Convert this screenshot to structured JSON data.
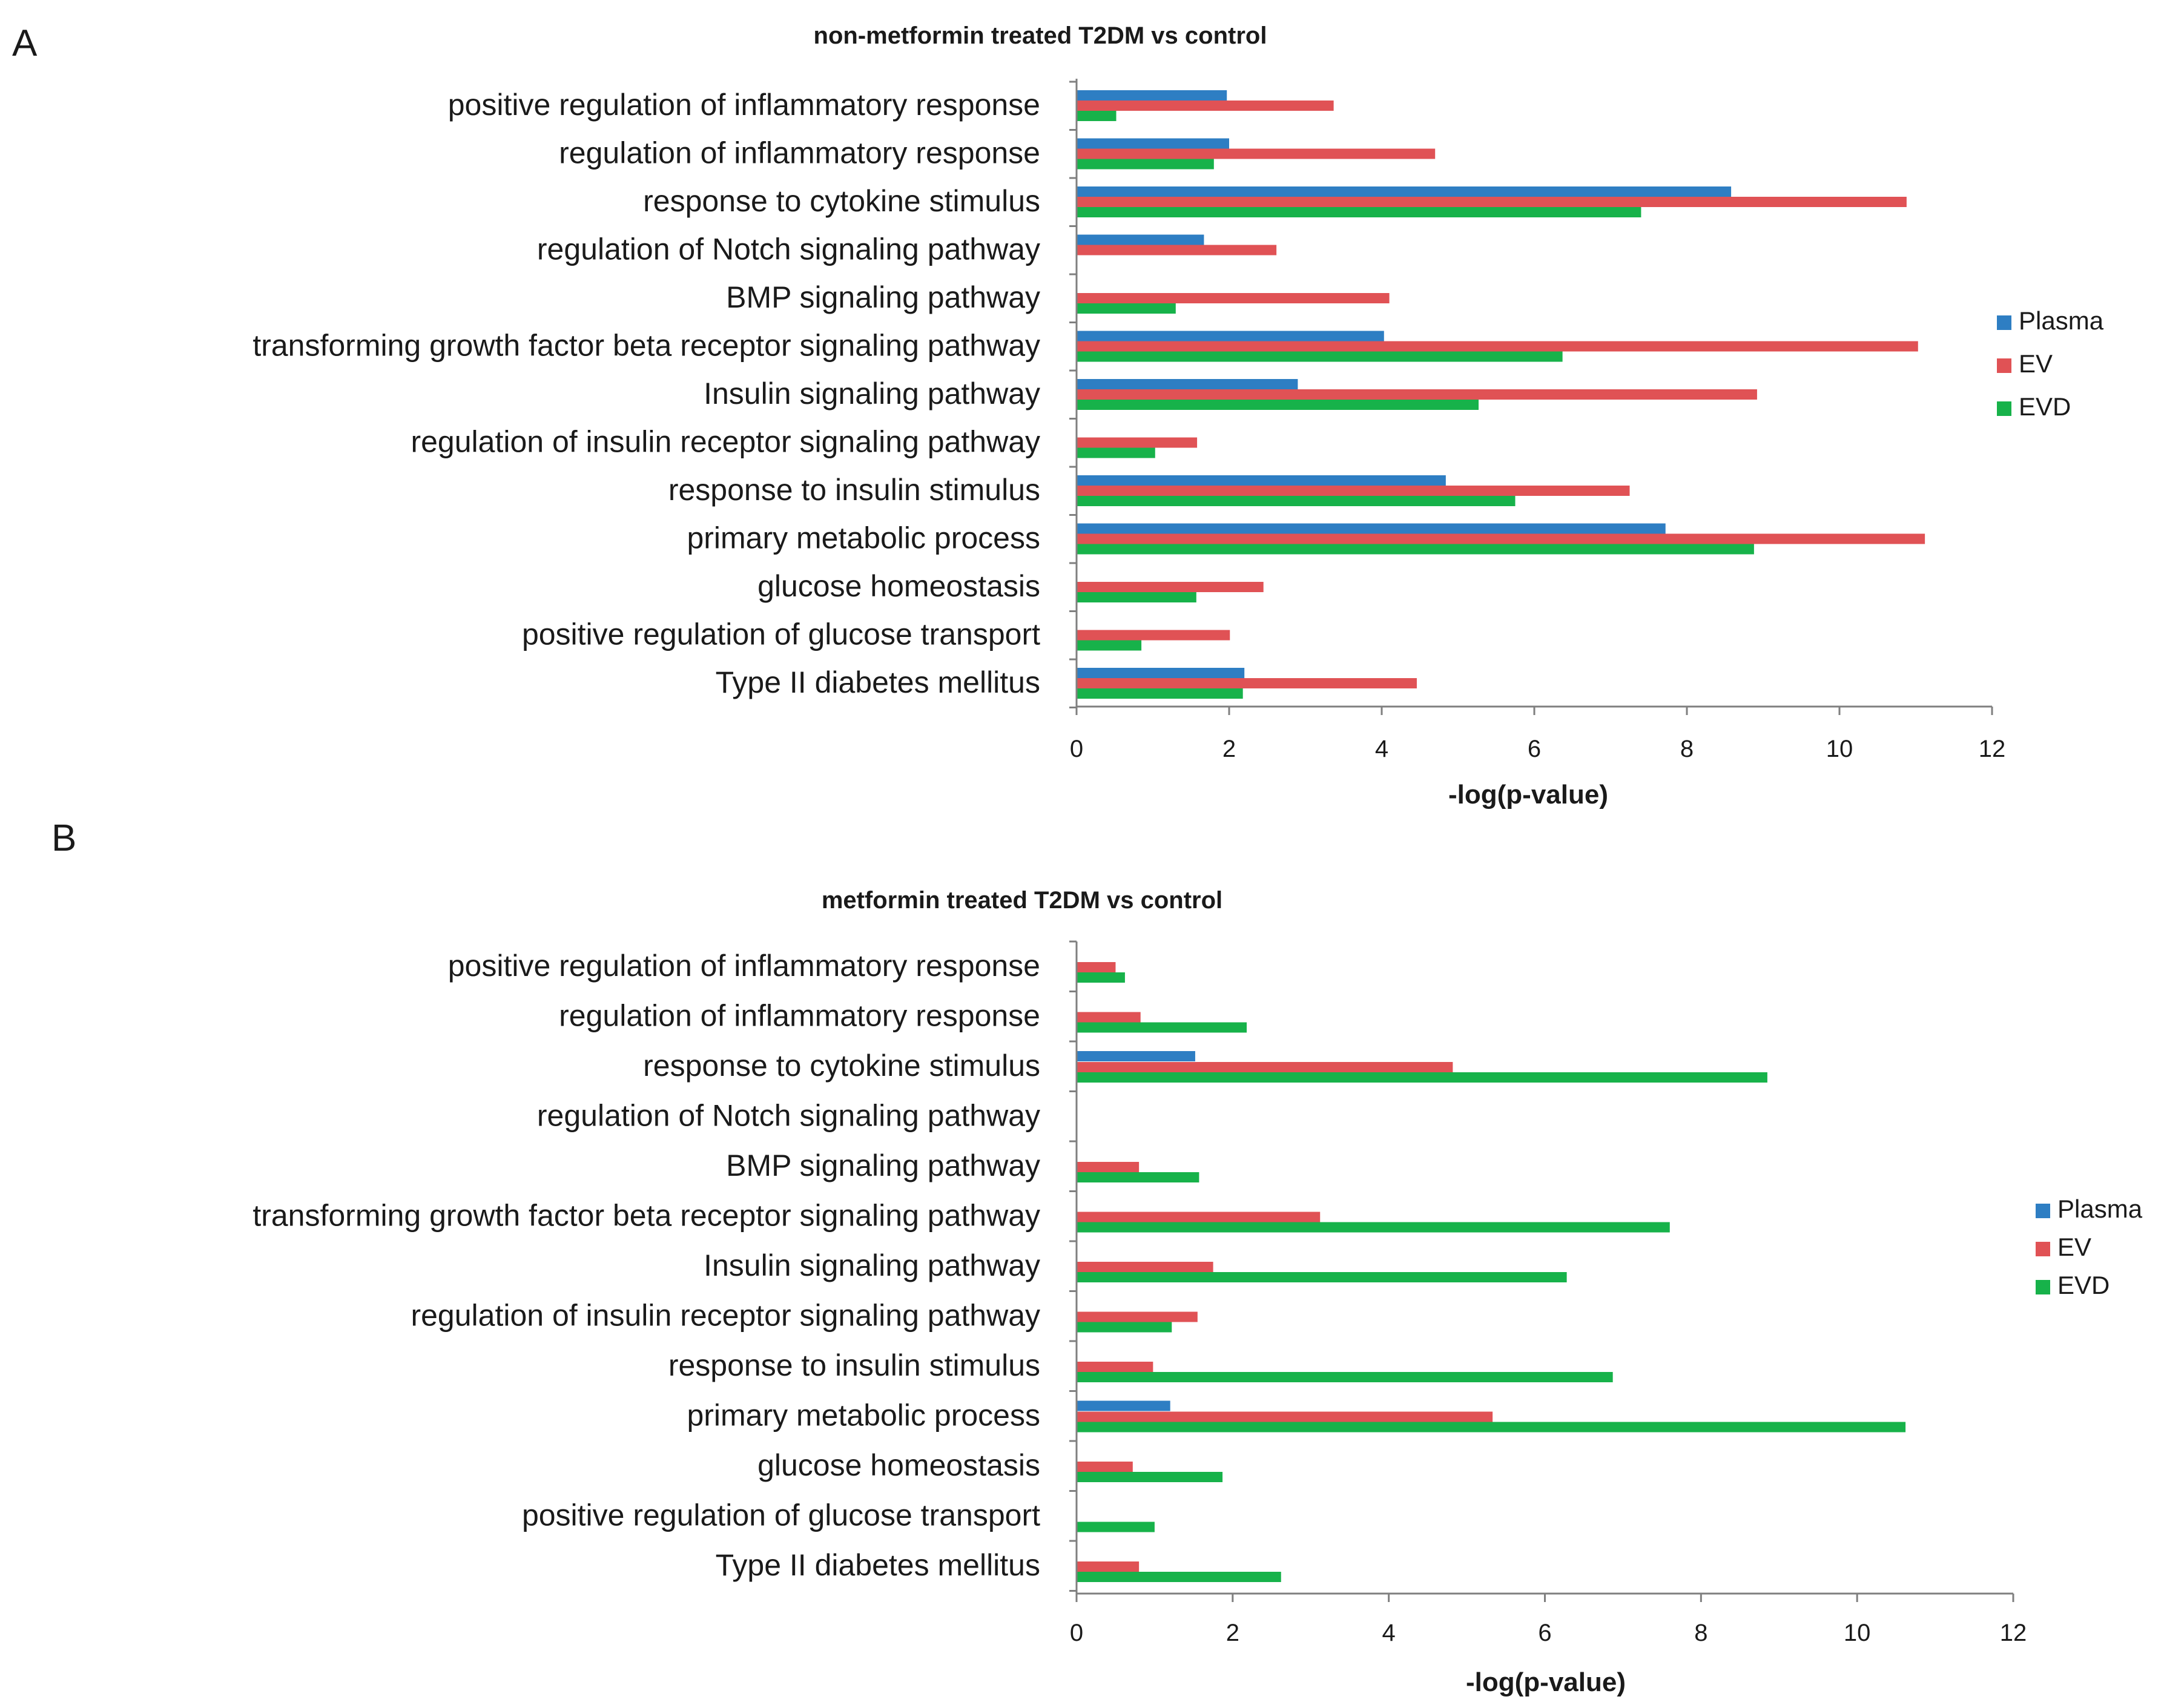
{
  "panel_labels": [
    "A",
    "B"
  ],
  "colors": {
    "Plasma": "#2e7ec3",
    "EV": "#e05255",
    "EVD": "#17b24a",
    "axis": "#7f7f7f"
  },
  "chart_data": [
    {
      "type": "bar",
      "orientation": "horizontal",
      "panel": "A",
      "title": "non-metformin treated T2DM vs control",
      "xlabel": "-log(p-value)",
      "ylabel": "",
      "xlim": [
        0,
        12
      ],
      "xticks": [
        0,
        2,
        4,
        6,
        8,
        10,
        12
      ],
      "legend": [
        "Plasma",
        "EV",
        "EVD"
      ],
      "legend_position": "right",
      "categories": [
        "positive regulation of inflammatory response",
        "regulation of inflammatory response",
        "response to cytokine stimulus",
        "regulation of Notch signaling pathway",
        "BMP signaling pathway",
        "transforming growth factor beta receptor signaling pathway",
        "Insulin signaling pathway",
        "regulation of insulin receptor signaling pathway",
        "response to insulin stimulus",
        "primary metabolic process",
        "glucose homeostasis",
        "positive regulation of glucose transport",
        "Type II diabetes mellitus"
      ],
      "series": [
        {
          "name": "Plasma",
          "values": [
            1.97,
            2.0,
            8.58,
            1.67,
            0,
            4.03,
            2.9,
            0,
            4.84,
            7.72,
            0,
            0,
            2.2
          ]
        },
        {
          "name": "EV",
          "values": [
            3.37,
            4.7,
            10.88,
            2.62,
            4.1,
            11.03,
            8.92,
            1.58,
            7.25,
            11.12,
            2.45,
            2.01,
            4.46
          ]
        },
        {
          "name": "EVD",
          "values": [
            0.52,
            1.8,
            7.4,
            0,
            1.3,
            6.37,
            5.27,
            1.03,
            5.75,
            8.88,
            1.57,
            0.85,
            2.18
          ]
        }
      ]
    },
    {
      "type": "bar",
      "orientation": "horizontal",
      "panel": "B",
      "title": "metformin treated  T2DM vs control",
      "xlabel": "-log(p-value)",
      "ylabel": "",
      "xlim": [
        0,
        12
      ],
      "xticks": [
        0,
        2,
        4,
        6,
        8,
        10,
        12
      ],
      "legend": [
        "Plasma",
        "EV",
        "EVD"
      ],
      "legend_position": "right",
      "categories": [
        "positive regulation of inflammatory response",
        "regulation of inflammatory response",
        "response to cytokine stimulus",
        "regulation of Notch signaling pathway",
        "BMP signaling pathway",
        "transforming growth factor beta receptor signaling pathway",
        "Insulin signaling pathway",
        "regulation of insulin receptor signaling pathway",
        "response to insulin stimulus",
        "primary metabolic process",
        "glucose homeostasis",
        "positive regulation of glucose transport",
        "Type II diabetes mellitus"
      ],
      "series": [
        {
          "name": "Plasma",
          "values": [
            0,
            0,
            1.52,
            0,
            0,
            0,
            0,
            0,
            0,
            1.2,
            0,
            0,
            0
          ]
        },
        {
          "name": "EV",
          "values": [
            0.5,
            0.82,
            4.82,
            0,
            0.8,
            3.12,
            1.75,
            1.55,
            0.98,
            5.33,
            0.72,
            0,
            0.8
          ]
        },
        {
          "name": "EVD",
          "values": [
            0.62,
            2.18,
            8.85,
            0,
            1.57,
            7.6,
            6.28,
            1.22,
            6.87,
            10.62,
            1.87,
            1.0,
            2.62
          ]
        }
      ]
    }
  ]
}
